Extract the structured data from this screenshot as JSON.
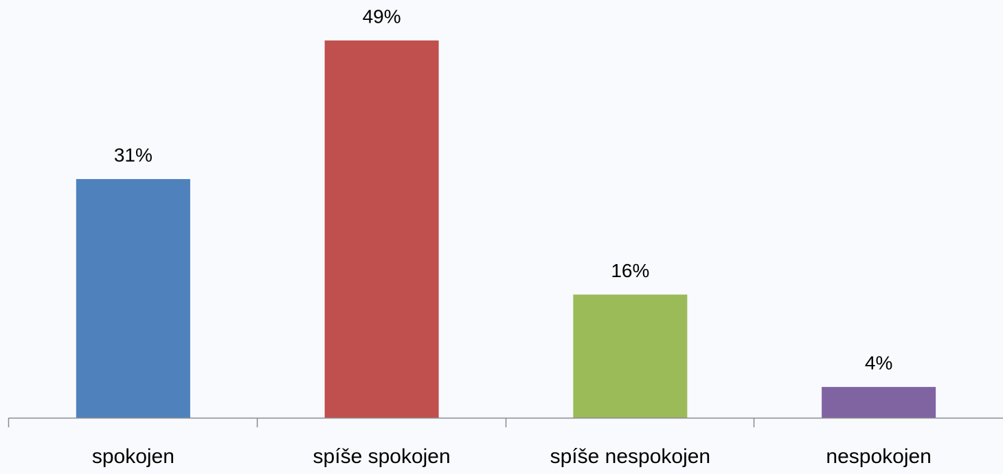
{
  "chart_data": {
    "type": "bar",
    "categories": [
      "spokojen",
      "spíše spokojen",
      "spíše nespokojen",
      "nespokojen"
    ],
    "values": [
      31,
      49,
      16,
      4
    ],
    "value_labels": [
      "31%",
      "49%",
      "16%",
      "4%"
    ],
    "colors": [
      "#4f81bd",
      "#c0504d",
      "#9bbb59",
      "#8064a2"
    ]
  }
}
